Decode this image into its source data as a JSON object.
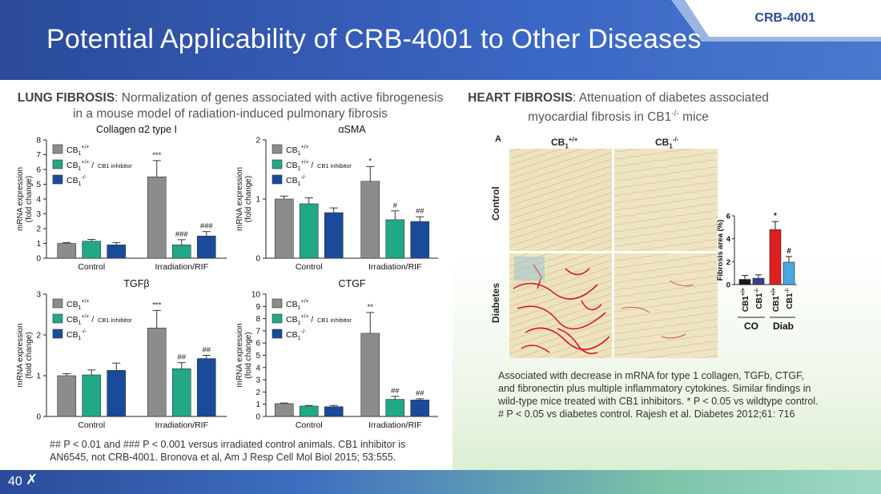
{
  "header": {
    "title": "Potential Applicability of CRB-4001 to Other Diseases",
    "company_tag": "CRB-4001"
  },
  "lung": {
    "heading_bold": "LUNG FIBROSIS",
    "heading_text": ": Normalization of genes associated with active fibrogenesis in a mouse model of radiation-induced pulmonary fibrosis"
  },
  "heart": {
    "heading_bold": "HEART FIBROSIS",
    "heading_text": ": Attenuation of diabetes associated myocardial fibrosis in CB1-/- mice",
    "panel_label": "A",
    "col_labels": [
      "CB1+/+",
      "CB1-/-"
    ],
    "row_labels": [
      "Control",
      "Diabetes"
    ]
  },
  "footnote": "## P < 0.01 and ### P < 0.001 versus irradiated control animals. CB1 inhibitor is AN6545, not CRB-4001. Bronova et al, Am J Resp Cell Mol Biol 2015; 53:555.",
  "description": "Associated with decrease in mRNA for type 1 collagen, TGFb, CTGF, and fibronectin plus multiple inflammatory cytokines. Similar findings in wild-type mice treated with CB1 inhibitors. * P < 0.05 vs wildtype control. # P < 0.05 vs diabetes control. Rajesh et al. Diabetes 2012;61: 716",
  "footer": {
    "page_number": "40"
  },
  "colors": {
    "grey": "#8c8c8c",
    "green": "#21a886",
    "blue": "#1a4b9a",
    "black": "#1a1a1a",
    "navy": "#34438c",
    "red": "#e02020",
    "lightblue": "#4aa8e0"
  },
  "chart_data": [
    {
      "type": "bar",
      "title": "Collagen α2 type I",
      "ylabel": "mRNA expression (fold change)",
      "categories": [
        "Control",
        "Irradiation/RIF"
      ],
      "ylim": [
        0,
        8
      ],
      "yticks": [
        0,
        1,
        2,
        3,
        4,
        5,
        6,
        7,
        8
      ],
      "series": [
        {
          "name": "CB1+/+",
          "values": [
            1.0,
            5.5
          ],
          "errors": [
            0.05,
            1.1
          ]
        },
        {
          "name": "CB1+/+ / CB1 inhibitor",
          "values": [
            1.15,
            0.9
          ],
          "errors": [
            0.12,
            0.35
          ]
        },
        {
          "name": "CB1-/-",
          "values": [
            0.9,
            1.5
          ],
          "errors": [
            0.15,
            0.3
          ]
        }
      ],
      "annotations": [
        [
          "",
          "***"
        ],
        [
          "",
          "###"
        ],
        [
          "",
          "###"
        ]
      ]
    },
    {
      "type": "bar",
      "title": "αSMA",
      "ylabel": "mRNA expression (fold change)",
      "categories": [
        "Control",
        "Irradiation/RIF"
      ],
      "ylim": [
        0,
        2
      ],
      "yticks": [
        0,
        1,
        2
      ],
      "series": [
        {
          "name": "CB1+/+",
          "values": [
            1.0,
            1.3
          ],
          "errors": [
            0.05,
            0.25
          ]
        },
        {
          "name": "CB1+/+ / CB1 inhibitor",
          "values": [
            0.92,
            0.65
          ],
          "errors": [
            0.1,
            0.15
          ]
        },
        {
          "name": "CB1-/-",
          "values": [
            0.77,
            0.62
          ],
          "errors": [
            0.08,
            0.08
          ]
        }
      ],
      "annotations": [
        [
          "",
          "*"
        ],
        [
          "",
          "#"
        ],
        [
          "",
          "##"
        ]
      ]
    },
    {
      "type": "bar",
      "title": "TGFβ",
      "ylabel": "mRNA expression (fold change)",
      "categories": [
        "Control",
        "Irradiation/RIF"
      ],
      "ylim": [
        0,
        3
      ],
      "yticks": [
        0,
        1,
        2,
        3
      ],
      "series": [
        {
          "name": "CB1+/+",
          "values": [
            1.0,
            2.17
          ],
          "errors": [
            0.05,
            0.43
          ]
        },
        {
          "name": "CB1+/+ / CB1 inhibitor",
          "values": [
            1.02,
            1.17
          ],
          "errors": [
            0.12,
            0.15
          ]
        },
        {
          "name": "CB1-/-",
          "values": [
            1.13,
            1.42
          ],
          "errors": [
            0.18,
            0.08
          ]
        }
      ],
      "annotations": [
        [
          "",
          "***"
        ],
        [
          "",
          "##"
        ],
        [
          "",
          "##"
        ]
      ]
    },
    {
      "type": "bar",
      "title": "CTGF",
      "ylabel": "mRNA expression (fold change)",
      "categories": [
        "Control",
        "Irradiation/RIF"
      ],
      "ylim": [
        0,
        10
      ],
      "yticks": [
        0,
        1,
        2,
        3,
        4,
        5,
        6,
        7,
        8,
        9,
        10
      ],
      "series": [
        {
          "name": "CB1+/+",
          "values": [
            1.05,
            6.8
          ],
          "errors": [
            0.05,
            1.7
          ]
        },
        {
          "name": "CB1+/+ / CB1 inhibitor",
          "values": [
            0.85,
            1.4
          ],
          "errors": [
            0.05,
            0.25
          ]
        },
        {
          "name": "CB1-/-",
          "values": [
            0.8,
            1.35
          ],
          "errors": [
            0.1,
            0.1
          ]
        }
      ],
      "annotations": [
        [
          "",
          "**"
        ],
        [
          "",
          "##"
        ],
        [
          "",
          "##"
        ]
      ]
    },
    {
      "type": "bar",
      "ylabel": "Fibrosis area (%)",
      "categories": [
        "CB1+/+ CO",
        "CB1-/- CO",
        "CB1+/+ Diab",
        "CB1-/- Diab"
      ],
      "group_labels": [
        "CO",
        "Diab"
      ],
      "ylim": [
        0,
        6
      ],
      "yticks": [
        0,
        2,
        4,
        6
      ],
      "values": [
        0.45,
        0.55,
        4.8,
        1.95
      ],
      "errors": [
        0.35,
        0.3,
        0.7,
        0.5
      ],
      "annotations": [
        "",
        "",
        "*",
        "#"
      ]
    }
  ]
}
